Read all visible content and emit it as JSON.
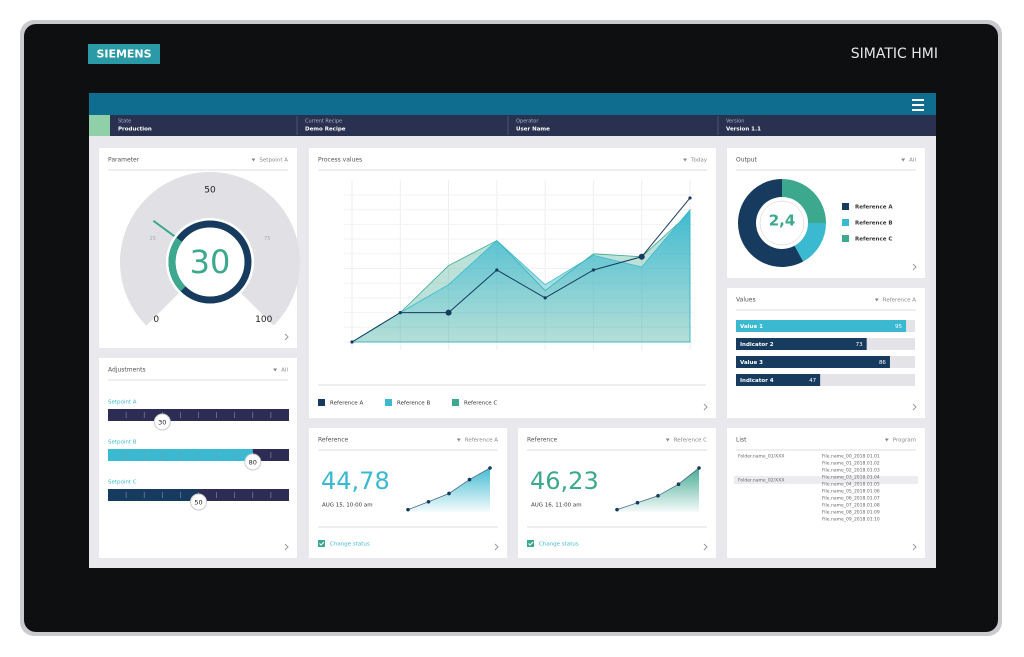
{
  "device": {
    "brand": "SIEMENS",
    "product": "SIMATIC HMI"
  },
  "status_bar": [
    {
      "label": "State",
      "value": "Production"
    },
    {
      "label": "Current Recipe",
      "value": "Demo Recipe"
    },
    {
      "label": "Operator",
      "value": "User Name"
    },
    {
      "label": "Version",
      "value": "Version 1.1"
    }
  ],
  "parameter": {
    "title": "Parameter",
    "filter": "Setpoint A",
    "value": 30,
    "range": [
      0,
      100
    ],
    "scale": [
      0,
      25,
      50,
      75,
      100
    ]
  },
  "process_values": {
    "title": "Process values",
    "filter": "Today",
    "ylim": [
      0,
      100
    ],
    "series": [
      {
        "name": "Reference A",
        "color": "#173b5e",
        "values": [
          0,
          20,
          20,
          49,
          30,
          49,
          58,
          98
        ]
      },
      {
        "name": "Reference B",
        "color": "#3bb9d0",
        "values": [
          0,
          20,
          39,
          69,
          39,
          59,
          51,
          90
        ]
      },
      {
        "name": "Reference C",
        "color": "#3ca88e",
        "values": [
          0,
          20,
          52,
          69,
          35,
          60,
          58,
          88
        ]
      }
    ]
  },
  "output": {
    "title": "Output",
    "filter": "All",
    "center": "2,4",
    "segments": [
      {
        "name": "Reference A",
        "color": "#173b5e",
        "value": 58
      },
      {
        "name": "Reference B",
        "color": "#3bb9d0",
        "value": 17
      },
      {
        "name": "Reference C",
        "color": "#3ca88e",
        "value": 25
      }
    ]
  },
  "values": {
    "title": "Values",
    "filter": "Reference A",
    "range": [
      0,
      100
    ],
    "items": [
      {
        "name": "Value 1",
        "value": 95,
        "color": "#3bb9d0"
      },
      {
        "name": "Indicator 2",
        "value": 73,
        "color": "#173b5e"
      },
      {
        "name": "Value 3",
        "value": 86,
        "color": "#173b5e"
      },
      {
        "name": "Indicator 4",
        "value": 47,
        "color": "#173b5e"
      }
    ]
  },
  "adjustments": {
    "title": "Adjustments",
    "filter": "All",
    "range": [
      0,
      100
    ],
    "items": [
      {
        "name": "Setpoint A",
        "value": 30,
        "color": "#2c2c54"
      },
      {
        "name": "Setpoint B",
        "value": 80,
        "color": "#3bb9d0"
      },
      {
        "name": "Setpoint C",
        "value": 50,
        "color": "#173b5e"
      }
    ]
  },
  "reference_cards": [
    {
      "title": "Reference",
      "filter": "Reference A",
      "value": "44,78",
      "time": "AUG 15, 10:00 am",
      "action": "Change status",
      "color": "#3bb9d0",
      "trend": [
        5,
        22,
        40,
        70,
        95
      ]
    },
    {
      "title": "Reference",
      "filter": "Reference C",
      "value": "46,23",
      "time": "AUG 16, 11:00 am",
      "action": "Change status",
      "color": "#3ca88e",
      "trend": [
        5,
        20,
        35,
        60,
        95
      ]
    }
  ],
  "list": {
    "title": "List",
    "filter": "Program",
    "folders": [
      "Folder.name_01/XXX",
      "Folder.name_02/XXX"
    ],
    "files": [
      "File.name_00_2018.01.01",
      "File.name_01_2018.01.02",
      "File.name_02_2018.01.03",
      "File.name_03_2018.01.04",
      "File.name_04_2018.01.05",
      "File.name_05_2018.01.06",
      "File.name_06_2018.01.07",
      "File.name_07_2018.01.08",
      "File.name_08_2018.01.09",
      "File.name_09_2018.01.10"
    ]
  }
}
